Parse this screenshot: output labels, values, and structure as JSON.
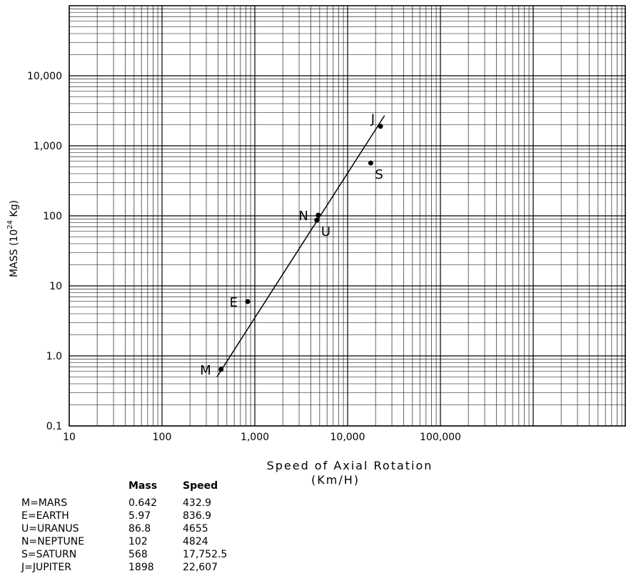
{
  "chart_data": {
    "type": "scatter",
    "x_scale": "log",
    "y_scale": "log",
    "xlim": [
      10,
      10000000
    ],
    "ylim": [
      0.1,
      100000
    ],
    "grid": true,
    "xlabel": "Speed of Axial Rotation",
    "xlabel_unit": "(Km/H)",
    "ylabel": "MASS (10",
    "ylabel_exp": "24",
    "ylabel_unit": " Kg)",
    "x_tick_labels": [
      "10",
      "100",
      "1,000",
      "10,000",
      "100,000"
    ],
    "x_tick_values": [
      10,
      100,
      1000,
      10000,
      100000
    ],
    "y_tick_labels": [
      "0.1",
      "1.0",
      "10",
      "100",
      "1,000",
      "10,000"
    ],
    "y_tick_values": [
      0.1,
      1,
      10,
      100,
      1000,
      10000
    ],
    "trend_line": {
      "x": [
        390,
        25000
      ],
      "y": [
        0.5,
        2700
      ]
    },
    "points": [
      {
        "label": "M",
        "x": 432.9,
        "y": 0.642,
        "label_pos": "left"
      },
      {
        "label": "E",
        "x": 836.9,
        "y": 5.97,
        "label_pos": "left"
      },
      {
        "label": "U",
        "x": 4655,
        "y": 86.8,
        "label_pos": "below-right"
      },
      {
        "label": "N",
        "x": 4824,
        "y": 102,
        "label_pos": "left"
      },
      {
        "label": "S",
        "x": 17752.5,
        "y": 568,
        "label_pos": "below-right"
      },
      {
        "label": "J",
        "x": 22607,
        "y": 1898,
        "label_pos": "above-left"
      }
    ]
  },
  "legend": {
    "mass_header": "Mass",
    "speed_header": "Speed",
    "rows": [
      {
        "name": "M=MARS",
        "mass": "0.642",
        "speed": "432.9"
      },
      {
        "name": "E=EARTH",
        "mass": "5.97",
        "speed": "836.9"
      },
      {
        "name": "U=URANUS",
        "mass": "86.8",
        "speed": "4655"
      },
      {
        "name": "N=NEPTUNE",
        "mass": "102",
        "speed": "4824"
      },
      {
        "name": "S=SATURN",
        "mass": "568",
        "speed": "17,752.5"
      },
      {
        "name": "J=JUPITER",
        "mass": "1898",
        "speed": "22,607"
      }
    ]
  }
}
